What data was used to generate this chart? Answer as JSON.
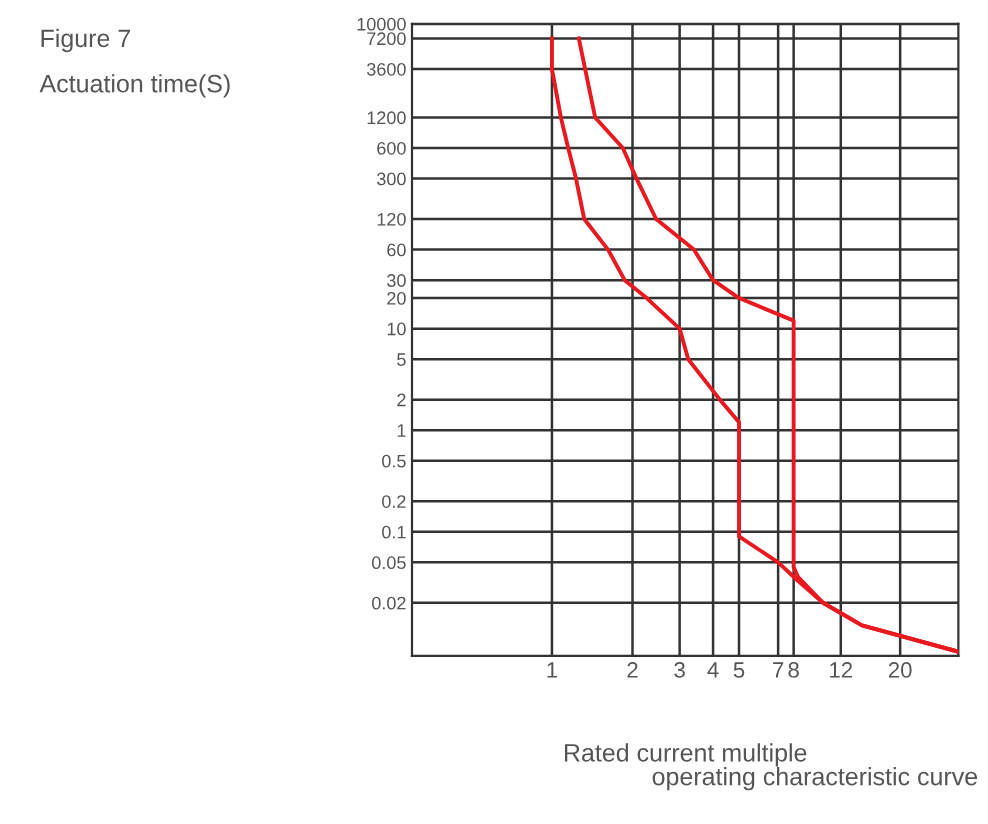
{
  "chart_data": {
    "type": "line",
    "title": "Figure 7",
    "xlabel": "Rated current multiple",
    "annotations": [
      "Actuation time(S)",
      "operating characteristic curve"
    ],
    "log": "xy",
    "grid": true,
    "marker": "none",
    "line_style": "solid",
    "xlim": [
      0.3,
      33
    ],
    "xticks": [
      1,
      2,
      3,
      4,
      5,
      7,
      8,
      12,
      20
    ],
    "ylim": [
      0.006,
      10000
    ],
    "yticks": [
      0.02,
      0.05,
      0.1,
      0.2,
      0.5,
      1,
      2,
      5,
      10,
      20,
      30,
      60,
      120,
      300,
      600,
      1200,
      3600,
      7200,
      10000
    ],
    "series": [
      {
        "color": "#e8191f",
        "x": [
          1.0,
          1.0,
          1.08,
          1.15,
          1.23,
          1.32,
          1.62,
          1.87,
          2.26,
          3.0,
          3.23,
          4.24,
          5.0,
          5.0,
          7.0,
          8.3,
          10.3,
          14.4,
          33
        ],
        "values": [
          7200,
          3600,
          1200,
          600,
          300,
          120,
          60,
          30,
          20,
          10,
          5,
          2,
          1.2,
          0.09,
          0.05,
          0.033,
          0.02,
          0.012,
          0.0066
        ]
      },
      {
        "color": "#e8191f",
        "x": [
          1.26,
          1.45,
          1.84,
          2.07,
          2.45,
          3.39,
          4.0,
          5.0,
          8.0,
          8.0,
          8.3,
          10.3,
          14.4,
          33
        ],
        "values": [
          7200,
          1200,
          600,
          300,
          120,
          60,
          30,
          20,
          12,
          0.045,
          0.036,
          0.02,
          0.012,
          0.0066
        ]
      }
    ]
  }
}
